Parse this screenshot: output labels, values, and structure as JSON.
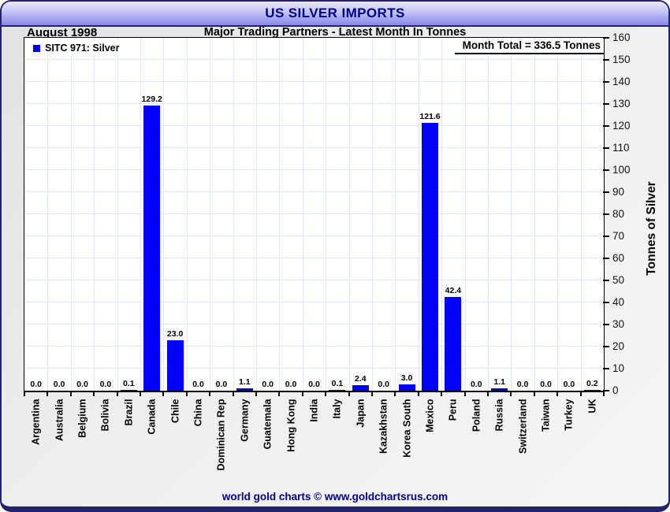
{
  "window": {
    "title": "US SILVER IMPORTS",
    "footer_text": "world gold charts © www.goldchartsrus.com"
  },
  "header": {
    "date_label": "August 1998",
    "subtitle": "Major Trading Partners - Latest Month In Tonnes"
  },
  "chart_annotations": {
    "legend_label": "SITC 971: Silver",
    "month_total_label": "Month Total = 336.5 Tonnes",
    "y_axis_title": "Tonnes of Silver"
  },
  "colors": {
    "bar": "#0202f5",
    "grid": "#dfe9f6",
    "navy": "#00008b",
    "titlebar_border": "#23236b"
  },
  "chart_data": {
    "type": "bar",
    "title": "US SILVER IMPORTS",
    "subtitle": "Major Trading Partners - Latest Month In Tonnes",
    "period": "August 1998",
    "series_name": "SITC 971: Silver",
    "month_total_tonnes": 336.5,
    "ylabel": "Tonnes of Silver",
    "ylim": [
      0,
      160
    ],
    "ytick_step": 10,
    "grid": true,
    "legend_position": "top-left",
    "categories": [
      "Argentina",
      "Australia",
      "Belgium",
      "Bolivia",
      "Brazil",
      "Canada",
      "Chile",
      "China",
      "Dominican Rep",
      "Germany",
      "Guatemala",
      "Hong Kong",
      "India",
      "Italy",
      "Japan",
      "Kazakhstan",
      "Korea South",
      "Mexico",
      "Peru",
      "Poland",
      "Russia",
      "Switzerland",
      "Taiwan",
      "Turkey",
      "UK"
    ],
    "values": [
      0.0,
      0.0,
      0.0,
      0.0,
      0.1,
      129.2,
      23.0,
      0.0,
      0.0,
      1.1,
      0.0,
      0.0,
      0.0,
      0.1,
      2.4,
      0.0,
      3.0,
      121.6,
      42.4,
      0.0,
      1.1,
      0.0,
      0.0,
      0.0,
      0.2
    ]
  }
}
